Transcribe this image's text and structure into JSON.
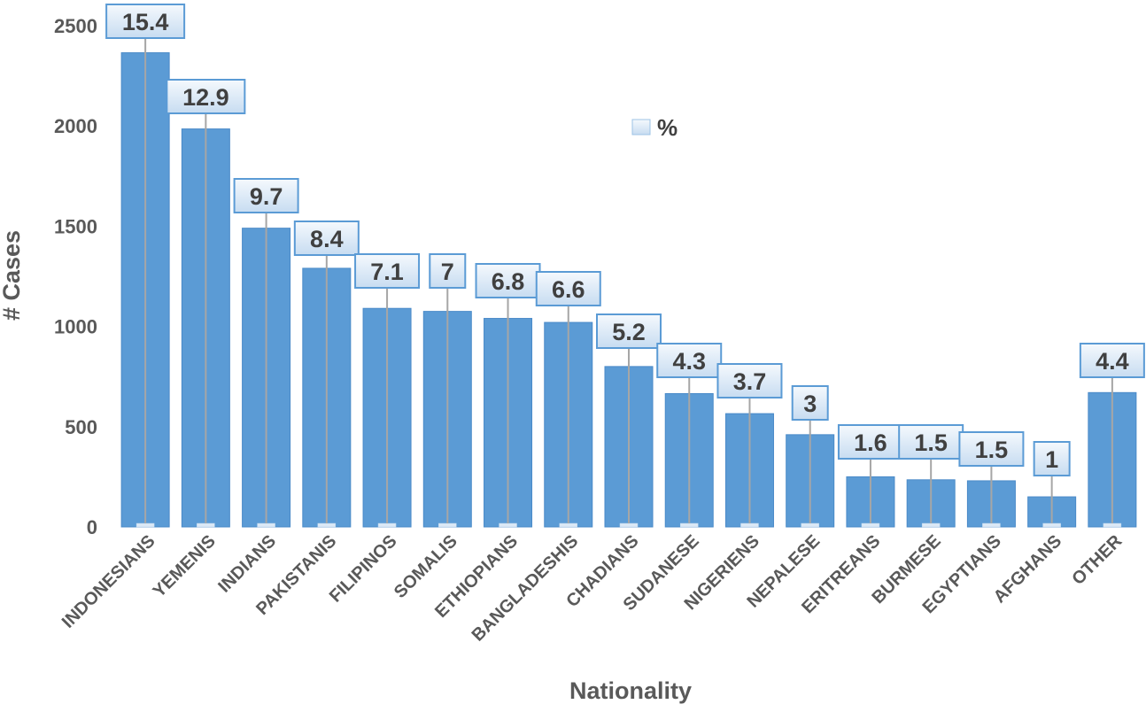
{
  "chart_data": {
    "type": "bar",
    "xlabel": "Nationality",
    "ylabel": "# Cases",
    "ylim": [
      0,
      2500
    ],
    "yticks": [
      0,
      500,
      1000,
      1500,
      2000,
      2500
    ],
    "grid": false,
    "legend": {
      "position": "top-center",
      "entries": [
        "%"
      ]
    },
    "categories": [
      "INDONESIANS",
      "YEMENIS",
      "INDIANS",
      "PAKISTANIS",
      "FILIPINOS",
      "SOMALIS",
      "ETHIOPIANS",
      "BANGLADESHIS",
      "CHADIANS",
      "SUDANESE",
      "NIGERIENS",
      "NEPALESE",
      "ERITREANS",
      "BURMESE",
      "EGYPTIANS",
      "AFGHANS",
      "OTHER"
    ],
    "series": [
      {
        "values": [
          2365,
          1985,
          1490,
          1290,
          1090,
          1075,
          1040,
          1020,
          800,
          665,
          565,
          460,
          250,
          235,
          230,
          150,
          670
        ]
      },
      {
        "name": "%",
        "values": [
          15.4,
          12.9,
          9.7,
          8.4,
          7.1,
          7,
          6.8,
          6.6,
          5.2,
          4.3,
          3.7,
          3,
          1.6,
          1.5,
          1.5,
          1,
          4.4
        ]
      }
    ],
    "colors": {
      "bar": "#5b9bd5",
      "bar_border": "#4a8ac8",
      "label_border": "#5b9bd5",
      "label_fill_top": "#f5f9fd",
      "label_fill_bottom": "#c7dcf1",
      "leader": "#a6a6a6",
      "axis_text": "#595959"
    }
  }
}
